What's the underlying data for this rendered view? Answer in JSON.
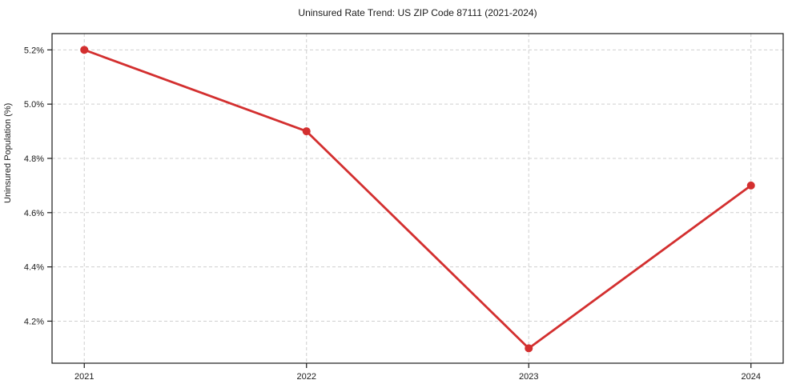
{
  "chart": {
    "title": "Uninsured Rate Trend: US ZIP Code 87111 (2021-2024)",
    "ylabel": "Uninsured Population (%)"
  },
  "chart_data": {
    "type": "line",
    "title": "Uninsured Rate Trend: US ZIP Code 87111 (2021-2024)",
    "xlabel": "",
    "ylabel": "Uninsured Population (%)",
    "x": [
      2021,
      2022,
      2023,
      2024
    ],
    "x_tick_labels": [
      "2021",
      "2022",
      "2023",
      "2024"
    ],
    "series": [
      {
        "name": "Uninsured Rate",
        "values": [
          5.2,
          4.9,
          4.1,
          4.7
        ]
      }
    ],
    "y_ticks": [
      4.2,
      4.4,
      4.6,
      4.8,
      5.0,
      5.2
    ],
    "y_tick_labels": [
      "4.2%",
      "4.4%",
      "4.6%",
      "4.8%",
      "5.0%",
      "5.2%"
    ],
    "xlim": [
      2020.855,
      2024.145
    ],
    "ylim": [
      4.045,
      5.26
    ],
    "grid": true,
    "legend": false,
    "line_color": "#d32f2f",
    "marker": "circle",
    "grid_color": "#cfcfcf",
    "border_color": "#1a1a1a"
  }
}
